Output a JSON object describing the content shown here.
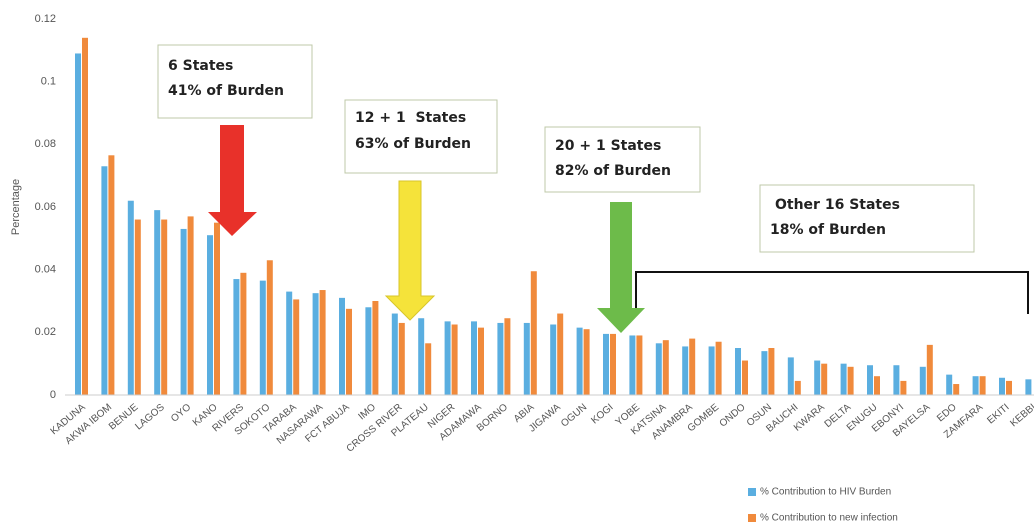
{
  "chart_data": {
    "type": "bar",
    "y_label": "Percentage",
    "categories": [
      "KADUNA",
      "AKWA IBOM",
      "BENUE",
      "LAGOS",
      "OYO",
      "KANO",
      "RIVERS",
      "SOKOTO",
      "TARABA",
      "NASARAWA",
      "FCT ABUJA",
      "IMO",
      "CROSS RIVER",
      "PLATEAU",
      "NIGER",
      "ADAMAWA",
      "BORNO",
      "ABIA",
      "JIGAWA",
      "OGUN",
      "KOGI",
      "YOBE",
      "KATSINA",
      "ANAMBRA",
      "GOMBE",
      "ONDO",
      "OSUN",
      "BAUCHI",
      "KWARA",
      "DELTA",
      "ENUGU",
      "EBONYI",
      "BAYELSA",
      "EDO",
      "ZAMFARA",
      "EKITI",
      "KEBBI"
    ],
    "series": [
      {
        "name": "% Contribution to HIV Burden",
        "color": "#5aaee0",
        "values": [
          0.109,
          0.073,
          0.062,
          0.059,
          0.053,
          0.051,
          0.037,
          0.0365,
          0.033,
          0.0325,
          0.031,
          0.028,
          0.026,
          0.0245,
          0.0235,
          0.0235,
          0.023,
          0.023,
          0.0225,
          0.0215,
          0.0195,
          0.019,
          0.0165,
          0.0155,
          0.0155,
          0.015,
          0.014,
          0.012,
          0.011,
          0.01,
          0.0095,
          0.0095,
          0.009,
          0.0065,
          0.006,
          0.0055,
          0.005
        ]
      },
      {
        "name": "% Contribution to new infection",
        "color": "#f08a3c",
        "values": [
          0.114,
          0.0765,
          0.056,
          0.056,
          0.057,
          0.055,
          0.039,
          0.043,
          0.0305,
          0.0335,
          0.0275,
          0.03,
          0.023,
          0.0165,
          0.0225,
          0.0215,
          0.0245,
          0.0395,
          0.026,
          0.021,
          0.0195,
          0.019,
          0.0175,
          0.018,
          0.017,
          0.011,
          0.015,
          0.0045,
          0.01,
          0.009,
          0.006,
          0.0045,
          0.016,
          0.0035,
          0.006,
          0.0045,
          null
        ]
      }
    ],
    "ylim": [
      0,
      0.12
    ],
    "yticks": [
      0,
      0.02,
      0.04,
      0.06,
      0.08,
      0.1,
      0.12
    ],
    "annotations": [
      {
        "lines": [
          "6 States",
          "41% of Burden"
        ]
      },
      {
        "lines": [
          "12 + 1  States",
          "63% of Burden"
        ]
      },
      {
        "lines": [
          "20 + 1 States",
          "82% of Burden"
        ]
      },
      {
        "lines": [
          "Other 16 States",
          "18% of Burden"
        ]
      }
    ]
  }
}
